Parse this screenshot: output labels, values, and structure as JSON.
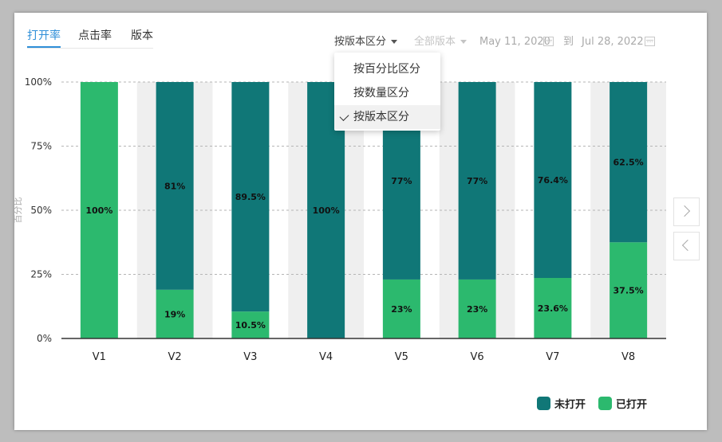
{
  "tabs": [
    {
      "label": "打开率",
      "active": true
    },
    {
      "label": "点击率",
      "active": false
    },
    {
      "label": "版本",
      "active": false
    }
  ],
  "toolbar": {
    "group_by": "按版本区分",
    "version_filter": "全部版本",
    "date_from": "May 11, 2020",
    "date_to_sep": "到",
    "date_to": "Jul 28, 2022"
  },
  "menu": {
    "items": [
      {
        "label": "按百分比区分",
        "selected": false
      },
      {
        "label": "按数量区分",
        "selected": false
      },
      {
        "label": "按版本区分",
        "selected": true
      }
    ]
  },
  "icons": {
    "calendar_from": "calendar-icon",
    "calendar_to": "calendar-icon",
    "next": "chevron-right-icon",
    "prev": "chevron-left-icon",
    "check": "check-icon"
  },
  "colors": {
    "unopened": "#107777",
    "opened": "#2cb96e",
    "accent": "#2f8fd8",
    "band": "#efefef"
  },
  "chart_data": {
    "type": "bar",
    "stacked": true,
    "ylabel": "百分比",
    "ylim": [
      0,
      100
    ],
    "yticks": [
      "0%",
      "25%",
      "50%",
      "75%",
      "100%"
    ],
    "categories": [
      "V1",
      "V2",
      "V3",
      "V4",
      "V5",
      "V6",
      "V7",
      "V8"
    ],
    "series": [
      {
        "name": "已打开",
        "values": [
          100,
          19,
          10.5,
          0,
          23,
          23,
          23.6,
          37.5
        ],
        "labels": [
          "100%",
          "19%",
          "10.5%",
          "",
          "23%",
          "23%",
          "23.6%",
          "37.5%"
        ]
      },
      {
        "name": "未打开",
        "values": [
          0,
          81,
          89.5,
          100,
          77,
          77,
          76.4,
          62.5
        ],
        "labels": [
          "",
          "81%",
          "89.5%",
          "100%",
          "77%",
          "77%",
          "76.4%",
          "62.5%"
        ]
      }
    ],
    "grid": true,
    "legend": "bottom-right"
  }
}
